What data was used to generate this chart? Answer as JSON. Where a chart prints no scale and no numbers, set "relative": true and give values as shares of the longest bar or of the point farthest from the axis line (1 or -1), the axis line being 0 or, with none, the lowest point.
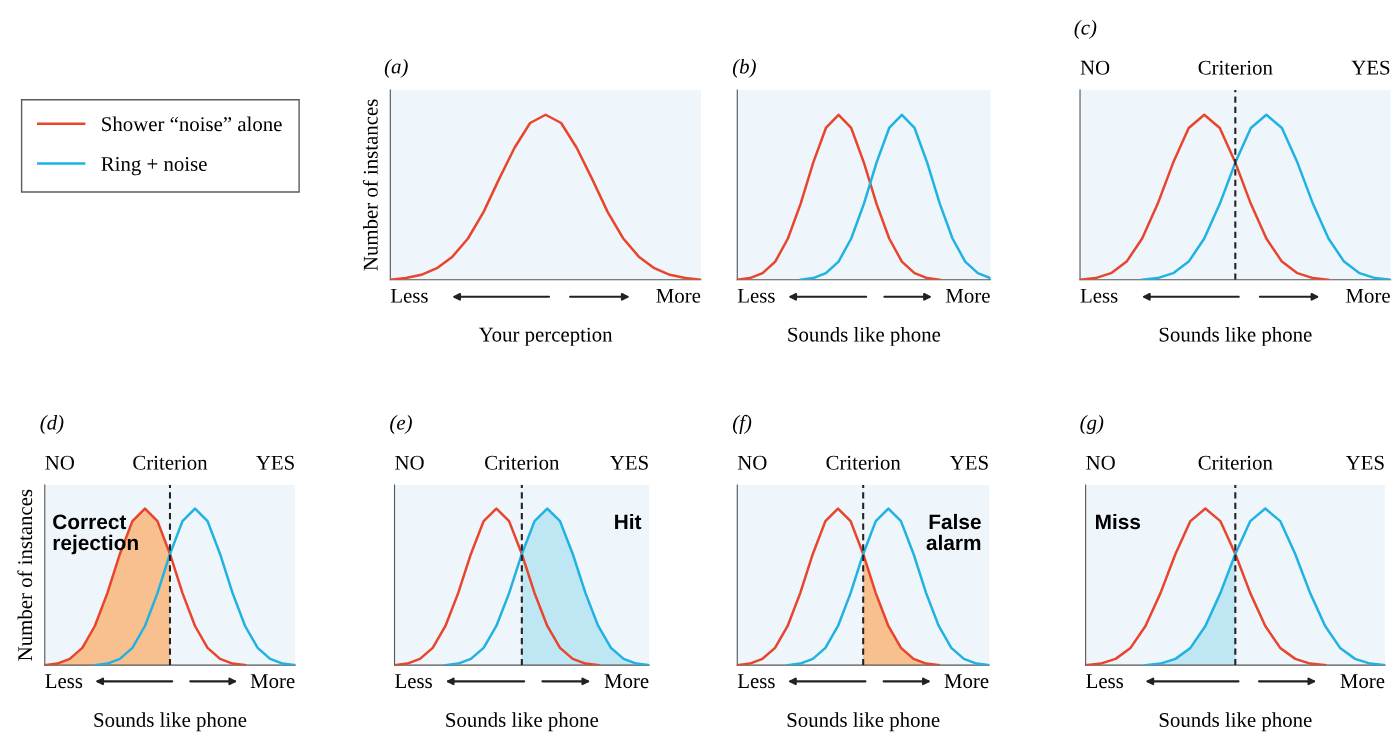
{
  "chart_data": [
    {
      "type": "line",
      "title": "(a)",
      "xlabel": "Your perception",
      "ylabel": "Number of instances",
      "relative": true,
      "tick_labels": false,
      "categories": [
        null,
        null,
        null,
        null,
        null,
        null,
        null,
        null,
        null,
        null,
        null,
        null,
        null,
        null,
        null,
        null,
        null,
        null,
        null,
        null,
        null
      ],
      "series": [
        {
          "color": "#e8452c",
          "values": [
            0,
            0.01,
            0.03,
            0.07,
            0.14,
            0.25,
            0.41,
            0.61,
            0.8,
            0.95,
            1,
            0.95,
            0.8,
            0.61,
            0.41,
            0.25,
            0.14,
            0.07,
            0.03,
            0.01,
            0
          ]
        }
      ],
      "annotations": [
        "Less",
        "More"
      ]
    },
    {
      "type": "line",
      "title": "(b)",
      "xlabel": "Sounds like phone",
      "relative": true,
      "tick_labels": false,
      "legend": "left",
      "categories": [
        null,
        null,
        null,
        null,
        null,
        null,
        null,
        null,
        null,
        null,
        null,
        null,
        null,
        null,
        null,
        null,
        null,
        null,
        null,
        null,
        null
      ],
      "series": [
        {
          "name": "Shower “noise” alone",
          "color": "#e8452c",
          "values": [
            0,
            0.01,
            0.04,
            0.11,
            0.25,
            0.46,
            0.71,
            0.92,
            1,
            0.92,
            0.71,
            0.46,
            0.25,
            0.11,
            0.04,
            0.01,
            0,
            null,
            null,
            null,
            null
          ]
        },
        {
          "name": "Ring + noise",
          "color": "#1fb2e3",
          "values": [
            null,
            null,
            null,
            null,
            null,
            0,
            0.01,
            0.04,
            0.11,
            0.25,
            0.46,
            0.71,
            0.92,
            1,
            0.92,
            0.71,
            0.46,
            0.25,
            0.11,
            0.04,
            0.01
          ]
        }
      ],
      "annotations": [
        "Less",
        "More"
      ]
    },
    {
      "type": "line",
      "title": "(c)",
      "xlabel": "Sounds like phone",
      "relative": true,
      "tick_labels": false,
      "categories": [
        null,
        null,
        null,
        null,
        null,
        null,
        null,
        null,
        null,
        null,
        null,
        null,
        null,
        null,
        null,
        null,
        null,
        null,
        null,
        null,
        null
      ],
      "series": [
        {
          "color": "#e8452c",
          "values": [
            0,
            0.01,
            0.04,
            0.11,
            0.25,
            0.46,
            0.71,
            0.92,
            1,
            0.92,
            0.71,
            0.46,
            0.25,
            0.11,
            0.04,
            0.01,
            0,
            null,
            null,
            null,
            null
          ]
        },
        {
          "color": "#1fb2e3",
          "values": [
            null,
            null,
            null,
            null,
            0,
            0.01,
            0.04,
            0.11,
            0.25,
            0.46,
            0.71,
            0.92,
            1,
            0.92,
            0.71,
            0.46,
            0.25,
            0.11,
            0.04,
            0.01,
            0
          ]
        }
      ],
      "annotations": [
        "Less",
        "More",
        "NO",
        "Criterion",
        "YES"
      ]
    },
    {
      "type": "line",
      "title": "(d)",
      "xlabel": "Sounds like phone",
      "ylabel": "Number of instances",
      "relative": true,
      "tick_labels": false,
      "categories": [
        null,
        null,
        null,
        null,
        null,
        null,
        null,
        null,
        null,
        null,
        null,
        null,
        null,
        null,
        null,
        null,
        null,
        null,
        null,
        null,
        null
      ],
      "series": [
        {
          "type": "area",
          "color": "#f9c08f",
          "values": [
            0,
            0.01,
            0.04,
            0.11,
            0.25,
            0.46,
            0.71,
            0.92,
            1,
            0.92,
            0.71,
            null,
            null,
            null,
            null,
            null,
            null,
            null,
            null,
            null,
            null
          ]
        },
        {
          "color": "#e8452c",
          "values": [
            0,
            0.01,
            0.04,
            0.11,
            0.25,
            0.46,
            0.71,
            0.92,
            1,
            0.92,
            0.71,
            0.46,
            0.25,
            0.11,
            0.04,
            0.01,
            0,
            null,
            null,
            null,
            null
          ]
        },
        {
          "color": "#1fb2e3",
          "values": [
            null,
            null,
            null,
            null,
            0,
            0.01,
            0.04,
            0.11,
            0.25,
            0.46,
            0.71,
            0.92,
            1,
            0.92,
            0.71,
            0.46,
            0.25,
            0.11,
            0.04,
            0.01,
            0
          ]
        }
      ],
      "annotations": [
        "Less",
        "More",
        "NO",
        "Criterion",
        "YES",
        "Correct\nrejection"
      ]
    },
    {
      "type": "line",
      "title": "(e)",
      "xlabel": "Sounds like phone",
      "relative": true,
      "tick_labels": false,
      "categories": [
        null,
        null,
        null,
        null,
        null,
        null,
        null,
        null,
        null,
        null,
        null,
        null,
        null,
        null,
        null,
        null,
        null,
        null,
        null,
        null,
        null
      ],
      "series": [
        {
          "type": "area",
          "color": "#bfe6f3",
          "values": [
            null,
            null,
            null,
            null,
            null,
            null,
            null,
            null,
            null,
            null,
            0.71,
            0.92,
            1,
            0.92,
            0.71,
            0.46,
            0.25,
            0.11,
            0.04,
            0.01,
            0
          ]
        },
        {
          "color": "#e8452c",
          "values": [
            0,
            0.01,
            0.04,
            0.11,
            0.25,
            0.46,
            0.71,
            0.92,
            1,
            0.92,
            0.71,
            0.46,
            0.25,
            0.11,
            0.04,
            0.01,
            0,
            null,
            null,
            null,
            null
          ]
        },
        {
          "color": "#1fb2e3",
          "values": [
            null,
            null,
            null,
            null,
            0,
            0.01,
            0.04,
            0.11,
            0.25,
            0.46,
            0.71,
            0.92,
            1,
            0.92,
            0.71,
            0.46,
            0.25,
            0.11,
            0.04,
            0.01,
            0
          ]
        }
      ],
      "annotations": [
        "Less",
        "More",
        "NO",
        "Criterion",
        "YES",
        "Hit"
      ]
    },
    {
      "type": "line",
      "title": "(f)",
      "xlabel": "Sounds like phone",
      "relative": true,
      "tick_labels": false,
      "categories": [
        null,
        null,
        null,
        null,
        null,
        null,
        null,
        null,
        null,
        null,
        null,
        null,
        null,
        null,
        null,
        null,
        null,
        null,
        null,
        null,
        null
      ],
      "series": [
        {
          "type": "area",
          "color": "#f9c08f",
          "values": [
            null,
            null,
            null,
            null,
            null,
            null,
            null,
            null,
            null,
            null,
            0.71,
            0.46,
            0.25,
            0.11,
            0.04,
            0.01,
            0,
            null,
            null,
            null,
            null
          ]
        },
        {
          "color": "#e8452c",
          "values": [
            0,
            0.01,
            0.04,
            0.11,
            0.25,
            0.46,
            0.71,
            0.92,
            1,
            0.92,
            0.71,
            0.46,
            0.25,
            0.11,
            0.04,
            0.01,
            0,
            null,
            null,
            null,
            null
          ]
        },
        {
          "color": "#1fb2e3",
          "values": [
            null,
            null,
            null,
            null,
            0,
            0.01,
            0.04,
            0.11,
            0.25,
            0.46,
            0.71,
            0.92,
            1,
            0.92,
            0.71,
            0.46,
            0.25,
            0.11,
            0.04,
            0.01,
            0
          ]
        }
      ],
      "annotations": [
        "Less",
        "More",
        "NO",
        "Criterion",
        "YES",
        "False\nalarm"
      ]
    },
    {
      "type": "line",
      "title": "(g)",
      "xlabel": "Sounds like phone",
      "relative": true,
      "tick_labels": false,
      "categories": [
        null,
        null,
        null,
        null,
        null,
        null,
        null,
        null,
        null,
        null,
        null,
        null,
        null,
        null,
        null,
        null,
        null,
        null,
        null,
        null,
        null
      ],
      "series": [
        {
          "type": "area",
          "color": "#bfe6f3",
          "values": [
            null,
            null,
            null,
            null,
            0,
            0.01,
            0.04,
            0.11,
            0.25,
            0.46,
            0.71,
            null,
            null,
            null,
            null,
            null,
            null,
            null,
            null,
            null,
            null
          ]
        },
        {
          "color": "#e8452c",
          "values": [
            0,
            0.01,
            0.04,
            0.11,
            0.25,
            0.46,
            0.71,
            0.92,
            1,
            0.92,
            0.71,
            0.46,
            0.25,
            0.11,
            0.04,
            0.01,
            0,
            null,
            null,
            null,
            null
          ]
        },
        {
          "color": "#1fb2e3",
          "values": [
            null,
            null,
            null,
            null,
            0,
            0.01,
            0.04,
            0.11,
            0.25,
            0.46,
            0.71,
            0.92,
            1,
            0.92,
            0.71,
            0.46,
            0.25,
            0.11,
            0.04,
            0.01,
            0
          ]
        }
      ],
      "annotations": [
        "Less",
        "More",
        "NO",
        "Criterion",
        "YES",
        "Miss"
      ]
    }
  ]
}
